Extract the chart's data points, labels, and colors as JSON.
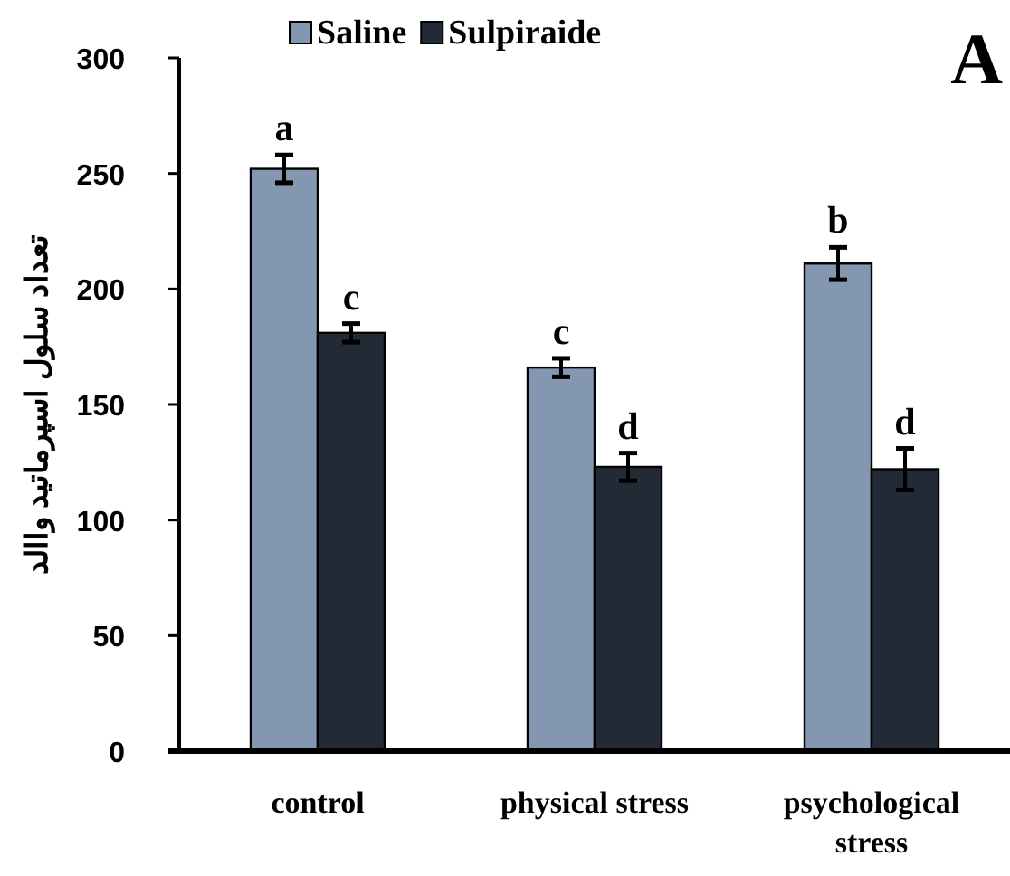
{
  "chart_data": {
    "type": "bar",
    "categories": [
      "control",
      "physical stress",
      "psychological stress"
    ],
    "ylabel": "تعداد سلول اسپرماتید واالد",
    "ylim": [
      0,
      300
    ],
    "yticks": [
      0,
      50,
      100,
      150,
      200,
      250,
      300
    ],
    "grid": false,
    "legend": "top",
    "annotations": [
      "A"
    ],
    "series": [
      {
        "name": "Saline",
        "color": "#8497b0",
        "values": [
          252,
          166,
          211
        ],
        "errors": [
          6,
          4,
          7
        ],
        "value_labels": [
          "a",
          "c",
          "b"
        ]
      },
      {
        "name": "Sulpiraide",
        "color": "#222a35",
        "values": [
          181,
          123,
          122
        ],
        "errors": [
          4,
          6,
          9
        ],
        "value_labels": [
          "c",
          "d",
          "d"
        ]
      }
    ]
  }
}
